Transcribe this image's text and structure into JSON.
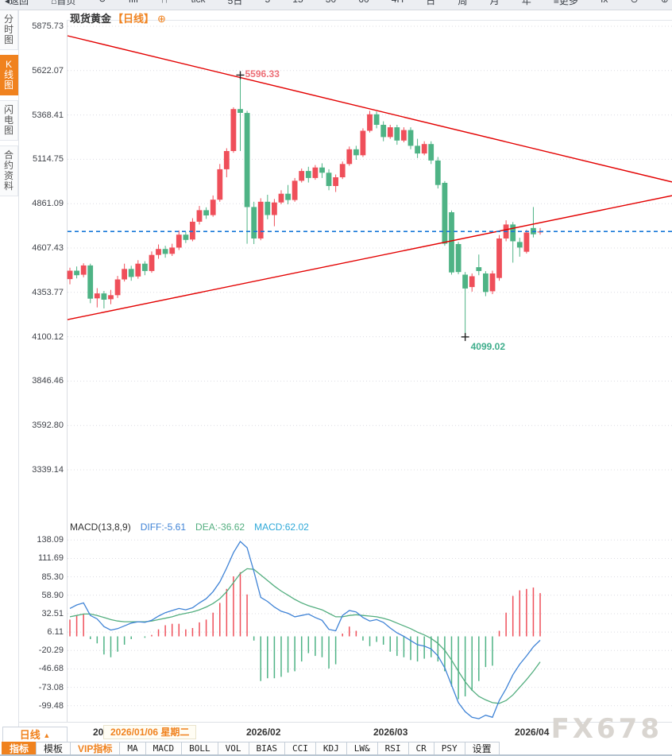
{
  "toolbar": {
    "items": [
      "◂返回",
      "⌂首页",
      "↻",
      "ılıl",
      "⫯⫯",
      "tick",
      "5日",
      "5",
      "15",
      "30",
      "60",
      "4H",
      "日",
      "周",
      "月",
      "年",
      "≡更多",
      "fx",
      "⊖",
      "⊕"
    ]
  },
  "sidebar": {
    "tabs": [
      {
        "label": "分时图",
        "active": false
      },
      {
        "label": "K线图",
        "active": true
      },
      {
        "label": "闪电图",
        "active": false
      },
      {
        "label": "合约资料",
        "active": false
      }
    ]
  },
  "chart": {
    "title": "现货黄金",
    "period_tag": "【日线】",
    "plus_icon": "⊕",
    "high_label": "5596.33",
    "low_label": "4099.02",
    "price_axis": [
      "5875.73",
      "5622.07",
      "5368.41",
      "5114.75",
      "4861.09",
      "4607.43",
      "4353.77",
      "4100.12",
      "3846.46",
      "3592.80",
      "3339.14"
    ]
  },
  "macd": {
    "title": "MACD(13,8,9)",
    "diff": "DIFF:-5.61",
    "dea": "DEA:-36.62",
    "macd": "MACD:62.02",
    "axis": [
      "138.09",
      "111.69",
      "85.30",
      "58.90",
      "32.51",
      "6.11",
      "-20.29",
      "-46.68",
      "-73.08",
      "-99.48"
    ],
    "sun_icon": "☀"
  },
  "xaxis": {
    "partial_label": "20",
    "tooltip": "2026/01/06 星期二",
    "months": [
      "2026/02",
      "2026/03",
      "2026/04"
    ]
  },
  "bottom_left": {
    "label": "日线",
    "arrow": "▲"
  },
  "indicator_tabs": [
    {
      "label": "指标",
      "variant": "active"
    },
    {
      "label": "模板",
      "variant": "cn"
    },
    {
      "label": "VIP指标",
      "variant": "vip"
    },
    {
      "label": "MA",
      "variant": "en"
    },
    {
      "label": "MACD",
      "variant": "en"
    },
    {
      "label": "BOLL",
      "variant": "en"
    },
    {
      "label": "VOL",
      "variant": "en"
    },
    {
      "label": "BIAS",
      "variant": "en"
    },
    {
      "label": "CCI",
      "variant": "en"
    },
    {
      "label": "KDJ",
      "variant": "en"
    },
    {
      "label": "LW&",
      "variant": "en"
    },
    {
      "label": "RSI",
      "variant": "en"
    },
    {
      "label": "CR",
      "variant": "en"
    },
    {
      "label": "PSY",
      "variant": "en"
    },
    {
      "label": "设置",
      "variant": "cn"
    }
  ],
  "watermark": "FX678",
  "colors": {
    "up": "#ef4f5a",
    "down": "#4eb385",
    "trendline": "#e30000",
    "last_price_line": "#1778d8",
    "diff_line": "#3f83d6",
    "dea_line": "#53ae7f",
    "macd_value_text": "#2ea8d8",
    "accent": "#f0821e",
    "grid": "#dcdce2"
  },
  "chart_data": {
    "type": "candlestick",
    "instrument": "现货黄金",
    "period": "日线",
    "price_axis_values": [
      5875.73,
      5622.07,
      5368.41,
      5114.75,
      4861.09,
      4607.43,
      4353.77,
      4100.12,
      3846.46,
      3592.8,
      3339.14
    ],
    "high_annotation": 5596.33,
    "low_annotation": 4099.02,
    "last_price_dashed_line": 4702,
    "x_month_labels": [
      "2026/02",
      "2026/03",
      "2026/04"
    ],
    "tooltip_date": "2026/01/06 星期二",
    "trendlines": {
      "upper": {
        "start_price": 5821,
        "end_price": 4985
      },
      "lower": {
        "start_price": 4198,
        "end_price": 4907
      }
    },
    "candles_ohlc": [
      [
        4430,
        4495,
        4400,
        4478
      ],
      [
        4478,
        4502,
        4434,
        4452
      ],
      [
        4455,
        4520,
        4440,
        4508
      ],
      [
        4508,
        4518,
        4292,
        4318
      ],
      [
        4320,
        4378,
        4268,
        4348
      ],
      [
        4348,
        4362,
        4262,
        4312
      ],
      [
        4315,
        4368,
        4286,
        4338
      ],
      [
        4338,
        4448,
        4322,
        4428
      ],
      [
        4428,
        4518,
        4416,
        4488
      ],
      [
        4488,
        4506,
        4420,
        4442
      ],
      [
        4445,
        4538,
        4432,
        4518
      ],
      [
        4518,
        4532,
        4452,
        4476
      ],
      [
        4476,
        4588,
        4466,
        4568
      ],
      [
        4568,
        4628,
        4546,
        4602
      ],
      [
        4602,
        4620,
        4552,
        4574
      ],
      [
        4574,
        4632,
        4562,
        4610
      ],
      [
        4610,
        4708,
        4596,
        4684
      ],
      [
        4684,
        4700,
        4636,
        4654
      ],
      [
        4656,
        4778,
        4646,
        4758
      ],
      [
        4758,
        4848,
        4742,
        4824
      ],
      [
        4824,
        4840,
        4774,
        4794
      ],
      [
        4796,
        4908,
        4786,
        4884
      ],
      [
        4884,
        5088,
        4872,
        5058
      ],
      [
        5058,
        5178,
        5012,
        5162
      ],
      [
        5162,
        5412,
        5152,
        5402
      ],
      [
        5402,
        5596.33,
        5162,
        5380
      ],
      [
        5380,
        5392,
        4632,
        4842
      ],
      [
        4842,
        4872,
        4630,
        4662
      ],
      [
        4662,
        4892,
        4652,
        4872
      ],
      [
        4872,
        4912,
        4772,
        4796
      ],
      [
        4796,
        4888,
        4732,
        4868
      ],
      [
        4868,
        4938,
        4858,
        4918
      ],
      [
        4918,
        4968,
        4858,
        4882
      ],
      [
        4882,
        5008,
        4872,
        4992
      ],
      [
        4992,
        5062,
        4982,
        5048
      ],
      [
        5048,
        5072,
        4982,
        5008
      ],
      [
        5008,
        5082,
        4998,
        5068
      ],
      [
        5068,
        5092,
        5008,
        5038
      ],
      [
        5038,
        5058,
        4938,
        4962
      ],
      [
        4962,
        5028,
        4928,
        5012
      ],
      [
        5012,
        5102,
        5002,
        5088
      ],
      [
        5088,
        5188,
        5078,
        5172
      ],
      [
        5172,
        5192,
        5112,
        5138
      ],
      [
        5138,
        5292,
        5128,
        5278
      ],
      [
        5278,
        5392,
        5268,
        5372
      ],
      [
        5372,
        5388,
        5292,
        5312
      ],
      [
        5312,
        5332,
        5218,
        5242
      ],
      [
        5242,
        5312,
        5232,
        5298
      ],
      [
        5298,
        5312,
        5198,
        5222
      ],
      [
        5222,
        5298,
        5212,
        5282
      ],
      [
        5282,
        5298,
        5172,
        5192
      ],
      [
        5192,
        5232,
        5122,
        5148
      ],
      [
        5148,
        5218,
        5138,
        5202
      ],
      [
        5202,
        5218,
        5088,
        5108
      ],
      [
        5108,
        5128,
        4948,
        4968
      ],
      [
        4980,
        4990,
        4620,
        4632
      ],
      [
        4812,
        4822,
        4455,
        4468
      ],
      [
        4630,
        4642,
        4458,
        4470
      ],
      [
        4455,
        4470,
        4099.02,
        4376
      ],
      [
        4384,
        4462,
        4358,
        4446
      ],
      [
        4498,
        4570,
        4452,
        4476
      ],
      [
        4462,
        4475,
        4332,
        4356
      ],
      [
        4360,
        4478,
        4344,
        4462
      ],
      [
        4436,
        4682,
        4420,
        4662
      ],
      [
        4662,
        4766,
        4646,
        4742
      ],
      [
        4742,
        4756,
        4524,
        4646
      ],
      [
        4642,
        4666,
        4558,
        4610
      ],
      [
        4586,
        4712,
        4576,
        4696
      ],
      [
        4722,
        4842,
        4668,
        4686
      ],
      [
        4698,
        4722,
        4684,
        4702
      ]
    ],
    "macd": {
      "params": [
        13,
        8,
        9
      ],
      "current": {
        "diff": -5.61,
        "dea": -36.62,
        "macd": 62.02
      },
      "axis_values": [
        138.09,
        111.69,
        85.3,
        58.9,
        32.51,
        6.11,
        -20.29,
        -46.68,
        -73.08,
        -99.48
      ],
      "diff": [
        40,
        45,
        48,
        30,
        25,
        14,
        9,
        11,
        15,
        19,
        21,
        20,
        23,
        29,
        34,
        37,
        40,
        38,
        41,
        48,
        54,
        64,
        78,
        98,
        120,
        136,
        127,
        93,
        56,
        50,
        42,
        36,
        33,
        28,
        30,
        32,
        27,
        23,
        10,
        8,
        30,
        37,
        35,
        27,
        22,
        24,
        20,
        12,
        5,
        0,
        -6,
        -12,
        -14,
        -18,
        -28,
        -45,
        -70,
        -95,
        -108,
        -116,
        -118,
        -113,
        -116,
        -92,
        -75,
        -55,
        -40,
        -28,
        -15,
        -5.61
      ],
      "dea": [
        28,
        30,
        32,
        32,
        30,
        27,
        24,
        22,
        21,
        21,
        21,
        21,
        22,
        24,
        26,
        28,
        31,
        33,
        35,
        38,
        42,
        47,
        54,
        64,
        77,
        90,
        97,
        96,
        88,
        80,
        72,
        65,
        59,
        53,
        48,
        44,
        41,
        38,
        33,
        28,
        28,
        30,
        31,
        30,
        29,
        28,
        26,
        23,
        19,
        15,
        11,
        6,
        2,
        -3,
        -10,
        -20,
        -34,
        -50,
        -65,
        -77,
        -86,
        -91,
        -95,
        -96,
        -92,
        -84,
        -73,
        -62,
        -50,
        -36.62
      ],
      "hist": [
        24,
        30,
        32,
        -4,
        -10,
        -26,
        -30,
        -22,
        -12,
        -4,
        0,
        -2,
        2,
        10,
        16,
        18,
        18,
        10,
        12,
        20,
        24,
        34,
        48,
        68,
        86,
        92,
        60,
        -6,
        -64,
        -60,
        -60,
        -58,
        -52,
        -50,
        -36,
        -24,
        -28,
        -30,
        -46,
        -40,
        4,
        14,
        8,
        -6,
        -14,
        -8,
        -12,
        -22,
        -28,
        -30,
        -34,
        -36,
        -32,
        -30,
        -36,
        -50,
        -72,
        -90,
        -86,
        -78,
        -64,
        -44,
        -42,
        8,
        34,
        58,
        66,
        68,
        70,
        62.02
      ]
    }
  }
}
